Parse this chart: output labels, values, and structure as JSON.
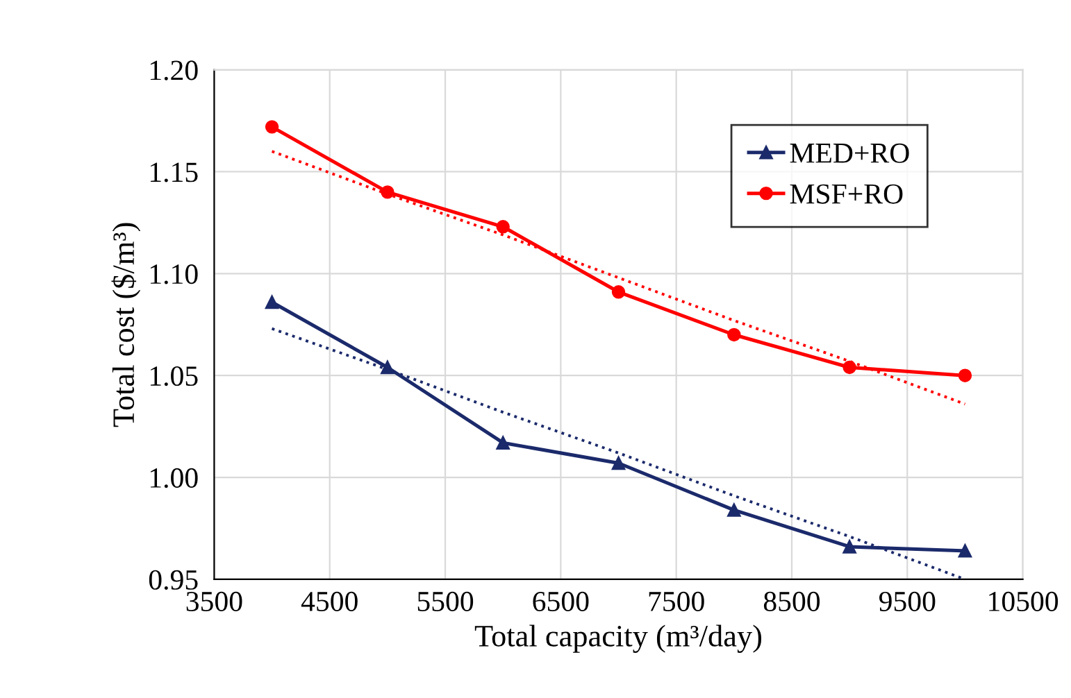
{
  "chart_data": {
    "type": "line",
    "xlabel": "Total capacity (m³/day)",
    "ylabel": "Total cost ($/m³)",
    "x": [
      4000,
      5000,
      6000,
      7000,
      8000,
      9000,
      10000
    ],
    "series": [
      {
        "name": "MED+RO",
        "color": "#1b2a6b",
        "marker": "triangle",
        "values": [
          1.086,
          1.054,
          1.017,
          1.007,
          0.984,
          0.966,
          0.964
        ]
      },
      {
        "name": "MSF+RO",
        "color": "#ff0000",
        "marker": "circle",
        "values": [
          1.172,
          1.14,
          1.123,
          1.091,
          1.07,
          1.054,
          1.05
        ]
      },
      {
        "color": "#1b2a6b",
        "marker": "none",
        "line_style": "dotted",
        "values": [
          1.073,
          1.053,
          1.032,
          1.012,
          0.991,
          0.971,
          0.95
        ]
      },
      {
        "color": "#ff0000",
        "marker": "none",
        "line_style": "dotted",
        "values": [
          1.16,
          1.139,
          1.119,
          1.098,
          1.077,
          1.057,
          1.036
        ]
      }
    ],
    "xlim": [
      3500,
      10500
    ],
    "xticks": [
      3500,
      4500,
      5500,
      6500,
      7500,
      8500,
      9500,
      10500
    ],
    "ylim": [
      0.95,
      1.2
    ],
    "yticks": [
      {
        "value": 0.95,
        "label": "0.95"
      },
      {
        "value": 1.0,
        "label": "1.00"
      },
      {
        "value": 1.05,
        "label": "1.05"
      },
      {
        "value": 1.1,
        "label": "1.10"
      },
      {
        "value": 1.15,
        "label": "1.15"
      },
      {
        "value": 1.2,
        "label": "1.20"
      }
    ],
    "grid": true,
    "legend": "top right"
  }
}
